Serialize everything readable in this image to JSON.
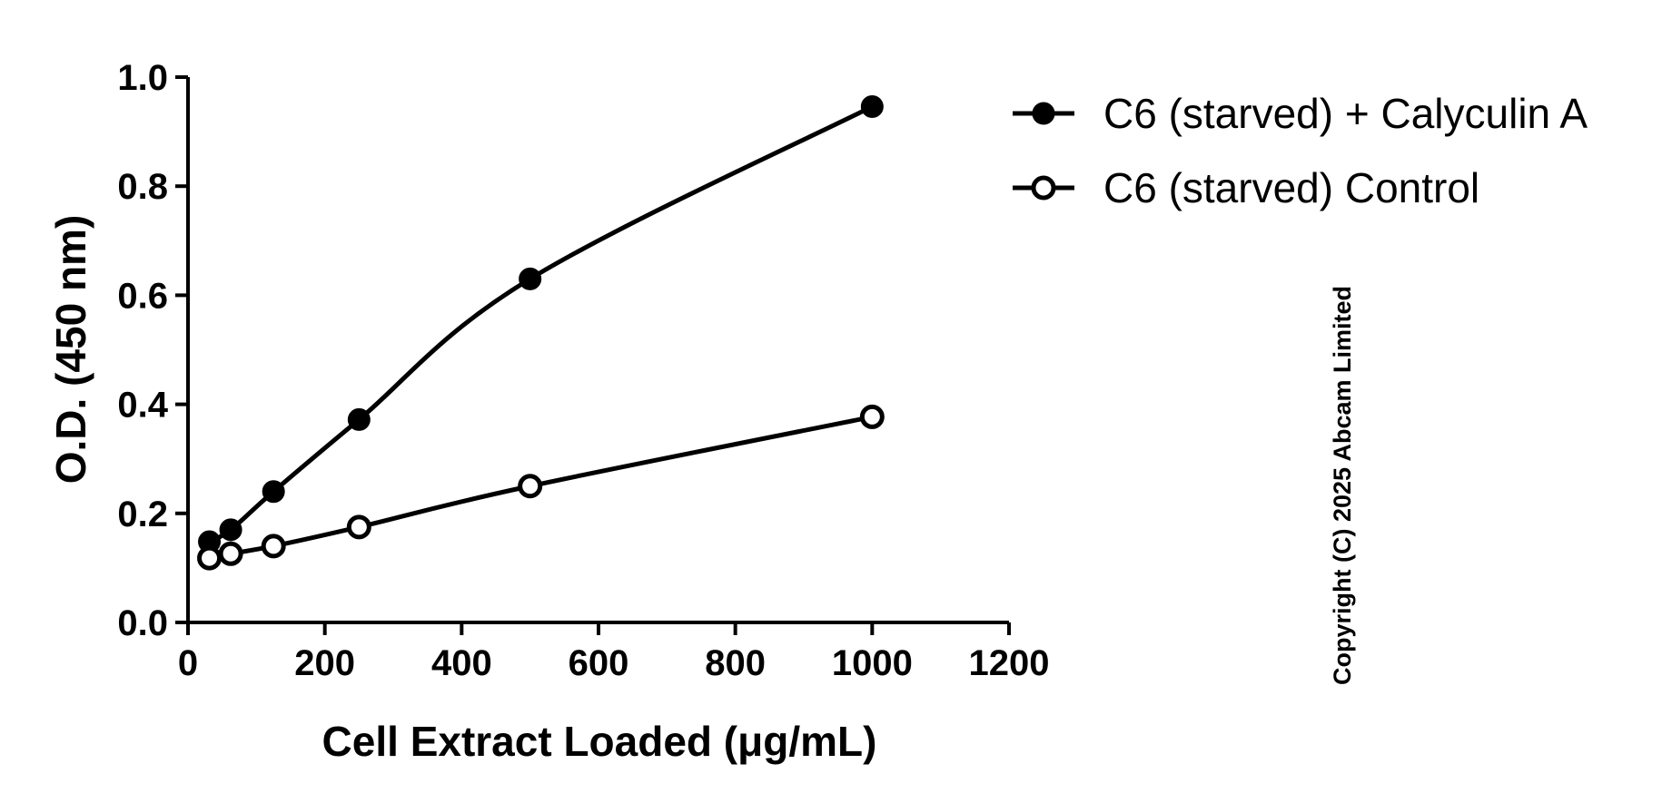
{
  "chart_data": {
    "type": "line",
    "title": "",
    "xlabel": "Cell Extract Loaded (μg/mL)",
    "ylabel": "O.D. (450 nm)",
    "xlim": [
      0,
      1200
    ],
    "ylim": [
      0.0,
      1.0
    ],
    "xticks": [
      0,
      200,
      400,
      600,
      800,
      1000,
      1200
    ],
    "xtick_labels": [
      "0",
      "200",
      "400",
      "600",
      "800",
      "1000",
      "1200"
    ],
    "yticks": [
      0.0,
      0.2,
      0.4,
      0.6,
      0.8,
      1.0
    ],
    "ytick_labels": [
      "0.0",
      "0.2",
      "0.4",
      "0.6",
      "0.8",
      "1.0"
    ],
    "grid": false,
    "legend_position": "top-right, outside plot",
    "series": [
      {
        "name": "C6 (starved) + Calyculin A",
        "marker": "filled-circle",
        "color": "#000000",
        "x": [
          31.25,
          62.5,
          125,
          250,
          500,
          1000
        ],
        "y": [
          0.148,
          0.17,
          0.24,
          0.372,
          0.63,
          0.946
        ]
      },
      {
        "name": "C6 (starved) Control",
        "marker": "open-circle",
        "color": "#000000",
        "x": [
          31.25,
          62.5,
          125,
          250,
          500,
          1000
        ],
        "y": [
          0.118,
          0.126,
          0.14,
          0.175,
          0.25,
          0.377
        ]
      }
    ]
  },
  "copyright": "Copyright (C) 2025 Abcam Limited"
}
